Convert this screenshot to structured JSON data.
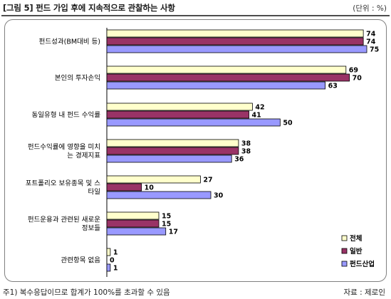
{
  "header": {
    "title": "[그림 5] 펀드 가입 후에 지속적으로 관찰하는 사항",
    "unit": "(단위 : %)"
  },
  "footer": {
    "note": "주1) 복수응답이므로 합계가 100%를 초과할 수 있음",
    "source": "자료 : 제로인"
  },
  "chart_data": {
    "type": "bar",
    "orientation": "horizontal",
    "categories": [
      [
        "펀드성과(BM대비 등)"
      ],
      [
        "본인의 투자손익"
      ],
      [
        "동일유형 내 펀드 수익률"
      ],
      [
        "펀드수익률에 영향을 미치",
        "는 경제지표"
      ],
      [
        "포트폴리오 보유종목 및 스",
        "타일"
      ],
      [
        "펀드운용과 관련된 새로운",
        "정보들"
      ],
      [
        "관련항목 없음"
      ]
    ],
    "series": [
      {
        "name": "전체",
        "color": "#ffffcc",
        "values": [
          74,
          69,
          42,
          38,
          27,
          15,
          1
        ]
      },
      {
        "name": "일반",
        "color": "#993366",
        "values": [
          74,
          70,
          41,
          38,
          10,
          15,
          0
        ]
      },
      {
        "name": "펀드산업",
        "color": "#9999ff",
        "values": [
          75,
          63,
          50,
          36,
          30,
          17,
          1
        ]
      }
    ],
    "xlim": [
      0,
      90
    ],
    "grid": false,
    "legend_position": "bottom-right",
    "data_labels": true
  }
}
